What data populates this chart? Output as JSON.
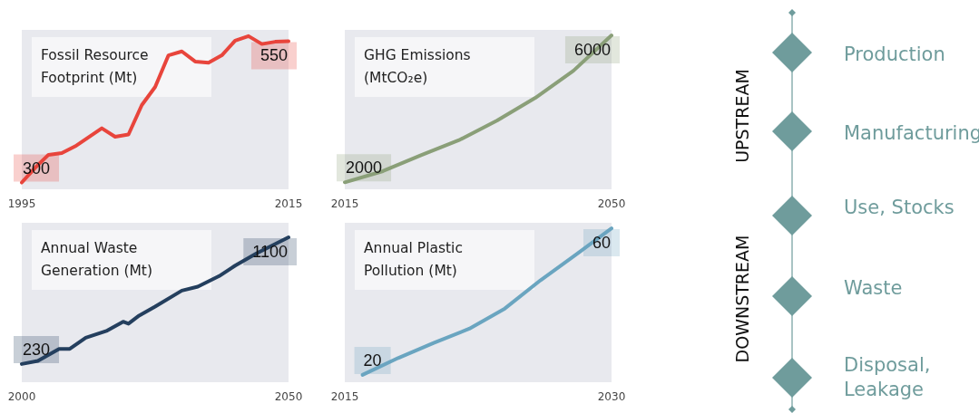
{
  "chart_data": [
    {
      "type": "line",
      "title": "Fossil Resource\nFootprint (Mt)",
      "color": "#e8453c",
      "x": [
        1995,
        1996,
        1997,
        1998,
        1999,
        2000,
        2001,
        2002,
        2003,
        2004,
        2005,
        2006,
        2007,
        2008,
        2009,
        2010,
        2011,
        2012,
        2013,
        2014,
        2015
      ],
      "values": [
        300,
        326,
        349,
        352,
        364,
        380,
        396,
        381,
        385,
        437,
        469,
        525,
        532,
        514,
        512,
        525,
        551,
        559,
        545,
        549,
        550
      ],
      "value_labels": [
        "300",
        null,
        null,
        null,
        null,
        null,
        null,
        null,
        null,
        null,
        null,
        null,
        null,
        null,
        null,
        null,
        null,
        null,
        null,
        null,
        "550"
      ],
      "xlim": [
        1995,
        2015
      ],
      "xticks": [
        1995,
        2015
      ],
      "ylim": [
        288,
        570
      ],
      "tick_labels": "x",
      "grid": false
    },
    {
      "type": "line",
      "title": "GHG Emissions\n(MtCO₂e)",
      "color": "#8a9f78",
      "x": [
        2015,
        2020,
        2025,
        2030,
        2035,
        2040,
        2045,
        2050
      ],
      "values": [
        2000,
        2304,
        2739,
        3150,
        3683,
        4299,
        5038,
        6000
      ],
      "value_labels": [
        "2000",
        null,
        null,
        null,
        null,
        null,
        null,
        "6000"
      ],
      "xlim": [
        2015,
        2050
      ],
      "xticks": [
        2015,
        2050
      ],
      "ylim": [
        1810,
        6150
      ],
      "tick_labels": "x",
      "grid": false
    },
    {
      "type": "line",
      "title": "Annual Waste\nGeneration (Mt)",
      "color": "#243f5e",
      "x": [
        2000,
        2003,
        2007,
        2009,
        2012,
        2016,
        2019,
        2020,
        2022,
        2025,
        2030,
        2033,
        2037,
        2040,
        2044,
        2050
      ],
      "values": [
        230,
        251,
        334,
        334,
        411,
        459,
        521,
        507,
        563,
        625,
        734,
        761,
        834,
        906,
        990,
        1100
      ],
      "value_labels": [
        "230",
        null,
        null,
        null,
        null,
        null,
        null,
        null,
        null,
        null,
        null,
        null,
        null,
        null,
        null,
        "1100"
      ],
      "xlim": [
        2000,
        2050
      ],
      "xticks": [
        2000,
        2050
      ],
      "ylim": [
        105,
        1200
      ],
      "tick_labels": "x",
      "grid": false
    },
    {
      "type": "line",
      "title": "Annual Plastic\nPollution (Mt)",
      "color": "#6aa5c0",
      "x": [
        2016,
        2018,
        2020,
        2022,
        2024,
        2026,
        2028,
        2030
      ],
      "values": [
        20,
        24.6,
        28.7,
        32.6,
        38.1,
        45.8,
        52.8,
        60
      ],
      "value_labels": [
        "20",
        null,
        null,
        null,
        null,
        null,
        null,
        "60"
      ],
      "xlim": [
        2015,
        2030
      ],
      "xticks": [
        2015,
        2030
      ],
      "ylim": [
        18,
        61.5
      ],
      "tick_labels": "x",
      "grid": false
    },
    {
      "type": "other",
      "color": "#6f9c9c",
      "annotations": [
        "Production",
        "Manufacturing",
        "Use, Stocks",
        "Waste",
        "Disposal, Leakage",
        "UPSTREAM",
        "DOWNSTREAM"
      ]
    }
  ]
}
